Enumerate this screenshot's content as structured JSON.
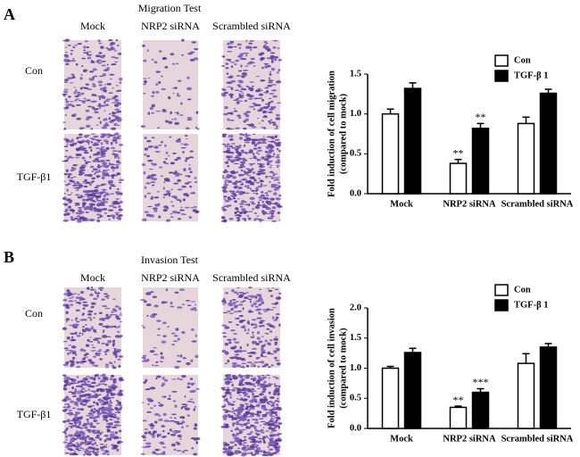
{
  "panels": [
    {
      "label": "A",
      "title": "Migration Test",
      "columns": [
        "Mock",
        "NRP2 siRNA",
        "Scrambled siRNA"
      ],
      "rows": [
        "Con",
        "TGF-β1"
      ]
    },
    {
      "label": "B",
      "title": "Invasion Test",
      "columns": [
        "Mock",
        "NRP2 siRNA",
        "Scrambled siRNA"
      ],
      "rows": [
        "Con",
        "TGF-β1"
      ]
    }
  ],
  "chart_data": [
    {
      "type": "bar",
      "ylabel": [
        "Fold induction of cell migration",
        "(compared to mock)"
      ],
      "categories": [
        "Mock",
        "NRP2 siRNA",
        "Scrambled siRNA"
      ],
      "series": [
        {
          "name": "Con",
          "color": "#ffffff",
          "values": [
            1.0,
            0.38,
            0.88
          ],
          "errors": [
            0.06,
            0.05,
            0.08
          ],
          "significance": [
            null,
            "**",
            null
          ]
        },
        {
          "name": "TGF-β 1",
          "color": "#000000",
          "values": [
            1.32,
            0.82,
            1.26
          ],
          "errors": [
            0.07,
            0.06,
            0.05
          ],
          "significance": [
            null,
            "**",
            null
          ]
        }
      ],
      "ylim": [
        0,
        1.5
      ],
      "yticks": [
        {
          "value": 0,
          "label": "0.0"
        },
        0.5,
        {
          "value": 1,
          "label": "1.0"
        },
        1.5
      ],
      "legend": "top-right"
    },
    {
      "type": "bar",
      "ylabel": [
        "Fold induction of cell invasion",
        "(compared to mock)"
      ],
      "categories": [
        "Mock",
        "NRP2 siRNA",
        "Scrambled siRNA"
      ],
      "series": [
        {
          "name": "Con",
          "color": "#ffffff",
          "values": [
            1.0,
            0.35,
            1.08
          ],
          "errors": [
            0.03,
            0.02,
            0.16
          ],
          "significance": [
            null,
            "**",
            null
          ]
        },
        {
          "name": "TGF-β 1",
          "color": "#000000",
          "values": [
            1.26,
            0.6,
            1.35
          ],
          "errors": [
            0.07,
            0.06,
            0.06
          ],
          "significance": [
            null,
            "***",
            null
          ]
        }
      ],
      "ylim": [
        0,
        2
      ],
      "yticks": [
        {
          "value": 0,
          "label": "0.0"
        },
        0.5,
        {
          "value": 1,
          "label": "1.0"
        },
        1.5,
        {
          "value": 2,
          "label": "2.0"
        }
      ],
      "legend": "top-right"
    }
  ]
}
